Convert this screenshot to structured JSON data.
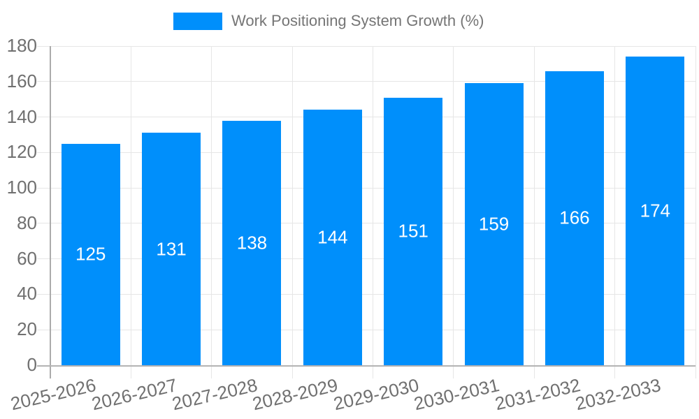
{
  "legend": {
    "label": "Work Positioning System Growth (%)"
  },
  "chart_data": {
    "type": "bar",
    "title": "",
    "xlabel": "",
    "ylabel": "",
    "categories": [
      "2025-2026",
      "2026-2027",
      "2027-2028",
      "2028-2029",
      "2029-2030",
      "2030-2031",
      "2031-2032",
      "2032-2033"
    ],
    "series": [
      {
        "name": "Work Positioning System Growth (%)",
        "values": [
          125,
          131,
          138,
          144,
          151,
          159,
          166,
          174
        ]
      }
    ],
    "value_labels_shown": true,
    "ylim": [
      0,
      180
    ],
    "yticks": [
      0,
      20,
      40,
      60,
      80,
      100,
      120,
      140,
      160,
      180
    ],
    "grid": true,
    "legend_position": "top",
    "bar_color": "#008FFB",
    "value_label_color": "#ffffff"
  },
  "colors": {
    "bar": "#008FFB",
    "grid_line": "#e6e6e6",
    "x_axis_line": "#b3b3b3",
    "y_axis_line": "#ababab",
    "tick_label": "#707070",
    "legend_text": "#757575",
    "background": "#ffffff"
  }
}
